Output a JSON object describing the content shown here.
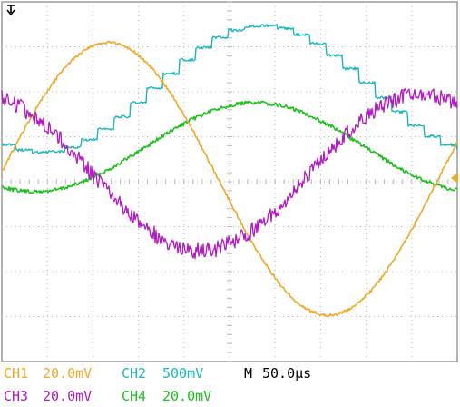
{
  "screen": {
    "background": "#ffffff",
    "graticule_color": "#bcbcbc",
    "border_color": "#9a9a9a"
  },
  "trigger": {
    "icon": "trigger-down-arrow-icon",
    "color": "#000000"
  },
  "channels": [
    {
      "id": "CH1",
      "scale": "20.0mV",
      "color": "#f5a623",
      "waveform": "sine",
      "level_marker": "right-edge-arrow-icon"
    },
    {
      "id": "CH2",
      "scale": "500mV",
      "color": "#19b8bd",
      "waveform": "staircase-sine"
    },
    {
      "id": "CH3",
      "scale": "20.0mV",
      "color": "#b21bc4",
      "waveform": "noisy-sine"
    },
    {
      "id": "CH4",
      "scale": "20.0mV",
      "color": "#1cc11c",
      "waveform": "sine"
    }
  ],
  "timebase": {
    "label": "M",
    "value": "50.0µs"
  }
}
